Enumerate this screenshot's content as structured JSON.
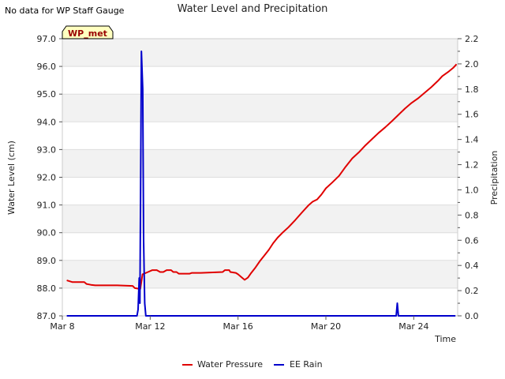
{
  "note": "No data for WP Staff Gauge",
  "chart_data": {
    "type": "line",
    "title": "Water Level and Precipitation",
    "xlabel": "Time",
    "ylabel_left": "Water Level (cm)",
    "ylabel_right": "Precipitation",
    "badge": "WP_met",
    "x_unit": "days",
    "xlim": [
      8,
      26.0
    ],
    "ylim_left": [
      87.0,
      97.0
    ],
    "ylim_right": [
      0.0,
      2.2
    ],
    "x_ticks": [
      {
        "value": 8,
        "label": "Mar 8"
      },
      {
        "value": 12,
        "label": "Mar 12"
      },
      {
        "value": 16,
        "label": "Mar 16"
      },
      {
        "value": 20,
        "label": "Mar 20"
      },
      {
        "value": 24,
        "label": "Mar 24"
      }
    ],
    "y_ticks_left": [
      "87.0",
      "88.0",
      "89.0",
      "90.0",
      "91.0",
      "92.0",
      "93.0",
      "94.0",
      "95.0",
      "96.0",
      "97.0"
    ],
    "y_ticks_right": [
      "0.0",
      "0.2",
      "0.4",
      "0.6",
      "0.8",
      "1.0",
      "1.2",
      "1.4",
      "1.6",
      "1.8",
      "2.0",
      "2.2"
    ],
    "grid": true,
    "legend_position": "bottom",
    "series": [
      {
        "name": "Water Pressure",
        "axis": "left",
        "color": "#e00000",
        "points": [
          [
            8.2,
            88.28
          ],
          [
            8.45,
            88.22
          ],
          [
            9.0,
            88.22
          ],
          [
            9.1,
            88.15
          ],
          [
            9.3,
            88.12
          ],
          [
            9.5,
            88.1
          ],
          [
            10.5,
            88.1
          ],
          [
            11.2,
            88.08
          ],
          [
            11.3,
            88.0
          ],
          [
            11.55,
            87.97
          ],
          [
            11.65,
            88.5
          ],
          [
            11.9,
            88.58
          ],
          [
            12.1,
            88.65
          ],
          [
            12.3,
            88.65
          ],
          [
            12.45,
            88.58
          ],
          [
            12.6,
            88.58
          ],
          [
            12.75,
            88.65
          ],
          [
            12.95,
            88.65
          ],
          [
            13.05,
            88.58
          ],
          [
            13.2,
            88.58
          ],
          [
            13.3,
            88.52
          ],
          [
            13.8,
            88.52
          ],
          [
            13.9,
            88.55
          ],
          [
            14.3,
            88.55
          ],
          [
            15.3,
            88.58
          ],
          [
            15.4,
            88.65
          ],
          [
            15.6,
            88.65
          ],
          [
            15.65,
            88.58
          ],
          [
            15.9,
            88.55
          ],
          [
            16.0,
            88.5
          ],
          [
            16.15,
            88.4
          ],
          [
            16.3,
            88.3
          ],
          [
            16.45,
            88.38
          ],
          [
            16.6,
            88.55
          ],
          [
            16.8,
            88.75
          ],
          [
            17.0,
            88.98
          ],
          [
            17.2,
            89.18
          ],
          [
            17.4,
            89.38
          ],
          [
            17.6,
            89.62
          ],
          [
            17.8,
            89.82
          ],
          [
            18.0,
            89.98
          ],
          [
            18.3,
            90.2
          ],
          [
            18.6,
            90.45
          ],
          [
            18.9,
            90.72
          ],
          [
            19.2,
            90.98
          ],
          [
            19.4,
            91.12
          ],
          [
            19.6,
            91.2
          ],
          [
            19.8,
            91.38
          ],
          [
            20.0,
            91.6
          ],
          [
            20.3,
            91.82
          ],
          [
            20.6,
            92.05
          ],
          [
            20.9,
            92.38
          ],
          [
            21.2,
            92.68
          ],
          [
            21.5,
            92.9
          ],
          [
            21.8,
            93.15
          ],
          [
            22.1,
            93.38
          ],
          [
            22.4,
            93.6
          ],
          [
            22.7,
            93.8
          ],
          [
            23.0,
            94.02
          ],
          [
            23.3,
            94.25
          ],
          [
            23.6,
            94.48
          ],
          [
            23.9,
            94.68
          ],
          [
            24.2,
            94.85
          ],
          [
            24.5,
            95.05
          ],
          [
            24.8,
            95.25
          ],
          [
            25.1,
            95.48
          ],
          [
            25.3,
            95.65
          ],
          [
            25.6,
            95.82
          ],
          [
            25.8,
            95.95
          ],
          [
            25.95,
            96.08
          ]
        ]
      },
      {
        "name": "EE Rain",
        "axis": "right",
        "color": "#0000cc",
        "points": [
          [
            8.2,
            0.0
          ],
          [
            11.4,
            0.0
          ],
          [
            11.45,
            0.05
          ],
          [
            11.5,
            0.3
          ],
          [
            11.53,
            0.1
          ],
          [
            11.56,
            0.9
          ],
          [
            11.6,
            2.1
          ],
          [
            11.66,
            1.8
          ],
          [
            11.7,
            0.6
          ],
          [
            11.75,
            0.1
          ],
          [
            11.8,
            0.0
          ],
          [
            23.2,
            0.0
          ],
          [
            23.25,
            0.1
          ],
          [
            23.3,
            0.0
          ],
          [
            25.9,
            0.0
          ]
        ]
      }
    ]
  }
}
